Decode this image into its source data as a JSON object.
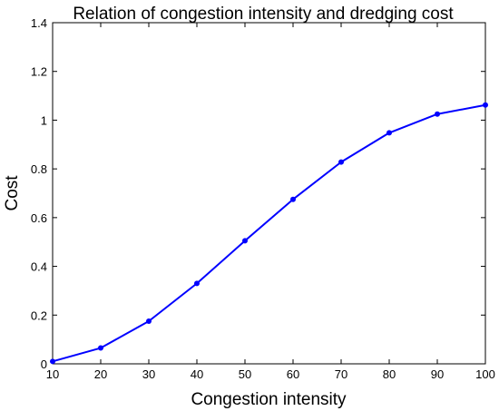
{
  "chart_data": {
    "type": "line",
    "title": "Relation of congestion intensity and dredging cost",
    "xlabel": "Congestion intensity",
    "ylabel": "Cost",
    "xlim": [
      10,
      100
    ],
    "ylim": [
      0,
      1.4
    ],
    "xticks": [
      "10",
      "20",
      "30",
      "40",
      "50",
      "60",
      "70",
      "80",
      "90",
      "100"
    ],
    "yticks": [
      "0",
      "0.2",
      "0.4",
      "0.6",
      "0.8",
      "1",
      "1.2",
      "1.4"
    ],
    "grid": false,
    "legend": "none",
    "series": [
      {
        "color": "#0000ff",
        "marker": "dot",
        "x": [
          10,
          20,
          30,
          40,
          50,
          60,
          70,
          80,
          90,
          100
        ],
        "y": [
          0.01,
          0.065,
          0.175,
          0.33,
          0.505,
          0.675,
          0.828,
          0.948,
          1.025,
          1.062
        ]
      }
    ]
  }
}
